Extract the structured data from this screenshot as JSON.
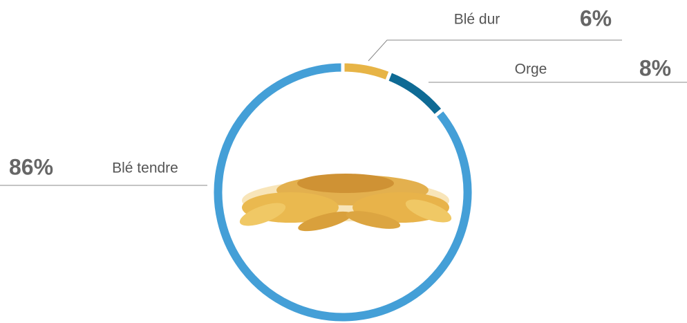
{
  "chart_data": {
    "type": "pie",
    "categories": [
      "Blé dur",
      "Orge",
      "Blé tendre"
    ],
    "values": [
      6,
      8,
      86
    ],
    "value_labels": [
      "6%",
      "8%",
      "86%"
    ],
    "colors": [
      "#e7b446",
      "#0e6a94",
      "#449fd7"
    ]
  }
}
